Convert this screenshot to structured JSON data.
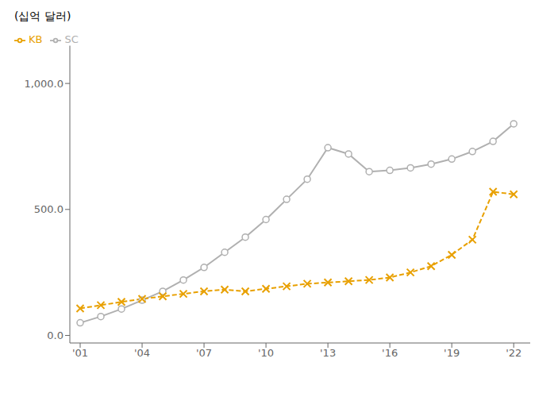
{
  "chart_data": {
    "type": "line",
    "title": "(십억 달러)",
    "x": [
      2001,
      2002,
      2003,
      2004,
      2005,
      2006,
      2007,
      2008,
      2009,
      2010,
      2011,
      2012,
      2013,
      2014,
      2015,
      2016,
      2017,
      2018,
      2019,
      2020,
      2021,
      2022
    ],
    "series": [
      {
        "name": "SC",
        "color": "#b0b0b0",
        "marker": "o",
        "line_style": "solid",
        "values": [
          50,
          75,
          105,
          140,
          175,
          220,
          270,
          330,
          390,
          460,
          540,
          620,
          745,
          720,
          650,
          655,
          665,
          680,
          700,
          730,
          770,
          840
        ]
      },
      {
        "name": "KB",
        "color": "#E8A000",
        "marker": "x",
        "line_style": "dashed",
        "values": [
          107,
          120,
          133,
          145,
          155,
          165,
          175,
          182,
          175,
          185,
          195,
          205,
          210,
          215,
          220,
          230,
          250,
          275,
          320,
          380,
          570,
          560
        ]
      }
    ],
    "xlim": [
      2000.5,
      2022.8
    ],
    "xticks": [
      {
        "value": 2001,
        "label": "'01"
      },
      {
        "value": 2004,
        "label": "'04"
      },
      {
        "value": 2007,
        "label": "'07"
      },
      {
        "value": 2010,
        "label": "'10"
      },
      {
        "value": 2013,
        "label": "'13"
      },
      {
        "value": 2016,
        "label": "'16"
      },
      {
        "value": 2019,
        "label": "'19"
      },
      {
        "value": 2022,
        "label": "'22"
      }
    ],
    "ylim": [
      -30,
      1150
    ],
    "yticks": [
      {
        "value": 0,
        "label": "0.0"
      },
      {
        "value": 500,
        "label": "500.0"
      },
      {
        "value": 1000,
        "label": "1,000.0"
      }
    ],
    "grid": false,
    "legend": "upper left"
  }
}
